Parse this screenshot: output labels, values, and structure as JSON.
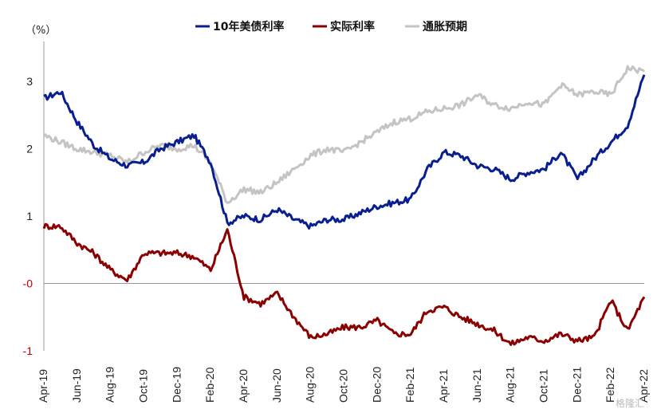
{
  "chart_data": {
    "type": "line",
    "unit_label": "（%）",
    "ylim": [
      -1,
      3.5
    ],
    "yticks": [
      3,
      2,
      1,
      0,
      -1
    ],
    "ytick_labels": [
      "3",
      "2",
      "1",
      "-0",
      "-1"
    ],
    "ytick_colors": [
      "#222222",
      "#222222",
      "#222222",
      "#c00000",
      "#c00000"
    ],
    "x_start": "2019-04",
    "x_end": "2022-04",
    "categories": [
      "Apr-19",
      "Jun-19",
      "Aug-19",
      "Oct-19",
      "Dec-19",
      "Feb-20",
      "Apr-20",
      "Jun-20",
      "Aug-20",
      "Oct-20",
      "Dec-20",
      "Feb-21",
      "Apr-21",
      "Jun-21",
      "Aug-21",
      "Oct-21",
      "Dec-21",
      "Feb-22",
      "Apr-22"
    ],
    "grid": false,
    "legend": "top-center",
    "series": [
      {
        "name": "10年美债利率",
        "color": "#0a1f8f",
        "x": [
          "2019-04",
          "2019-05",
          "2019-06",
          "2019-07",
          "2019-08",
          "2019-09",
          "2019-10",
          "2019-11",
          "2019-12",
          "2020-01",
          "2020-02",
          "2020-03",
          "2020-04",
          "2020-05",
          "2020-06",
          "2020-07",
          "2020-08",
          "2020-09",
          "2020-10",
          "2020-11",
          "2020-12",
          "2021-01",
          "2021-02",
          "2021-03",
          "2021-04",
          "2021-05",
          "2021-06",
          "2021-07",
          "2021-08",
          "2021-09",
          "2021-10",
          "2021-11",
          "2021-12",
          "2022-01",
          "2022-02",
          "2022-03",
          "2022-04"
        ],
        "values": [
          2.75,
          2.85,
          2.4,
          2.05,
          1.85,
          1.75,
          1.8,
          2.0,
          2.1,
          2.2,
          1.8,
          0.9,
          1.0,
          0.95,
          1.1,
          0.95,
          0.85,
          0.95,
          0.95,
          1.05,
          1.15,
          1.2,
          1.25,
          1.7,
          1.95,
          1.9,
          1.75,
          1.7,
          1.55,
          1.65,
          1.7,
          1.95,
          1.55,
          1.85,
          2.1,
          2.35,
          3.1
        ]
      },
      {
        "name": "实际利率",
        "color": "#8b0000",
        "x": [
          "2019-04",
          "2019-05",
          "2019-06",
          "2019-07",
          "2019-08",
          "2019-09",
          "2019-10",
          "2019-11",
          "2019-12",
          "2020-01",
          "2020-02",
          "2020-03",
          "2020-04",
          "2020-05",
          "2020-06",
          "2020-07",
          "2020-08",
          "2020-09",
          "2020-10",
          "2020-11",
          "2020-12",
          "2021-01",
          "2021-02",
          "2021-03",
          "2021-04",
          "2021-05",
          "2021-06",
          "2021-07",
          "2021-08",
          "2021-09",
          "2021-10",
          "2021-11",
          "2021-12",
          "2022-01",
          "2022-02",
          "2022-03",
          "2022-04"
        ],
        "values": [
          0.85,
          0.85,
          0.6,
          0.45,
          0.2,
          0.05,
          0.45,
          0.45,
          0.45,
          0.4,
          0.2,
          0.8,
          -0.2,
          -0.3,
          -0.15,
          -0.5,
          -0.8,
          -0.75,
          -0.65,
          -0.65,
          -0.55,
          -0.75,
          -0.75,
          -0.4,
          -0.35,
          -0.5,
          -0.6,
          -0.7,
          -0.9,
          -0.8,
          -0.85,
          -0.75,
          -0.85,
          -0.8,
          -0.25,
          -0.7,
          -0.2
        ]
      },
      {
        "name": "通胀预期",
        "color": "#c4c4c4",
        "x": [
          "2019-04",
          "2019-05",
          "2019-06",
          "2019-07",
          "2019-08",
          "2019-09",
          "2019-10",
          "2019-11",
          "2019-12",
          "2020-01",
          "2020-02",
          "2020-03",
          "2020-04",
          "2020-05",
          "2020-06",
          "2020-07",
          "2020-08",
          "2020-09",
          "2020-10",
          "2020-11",
          "2020-12",
          "2021-01",
          "2021-02",
          "2021-03",
          "2021-04",
          "2021-05",
          "2021-06",
          "2021-07",
          "2021-08",
          "2021-09",
          "2021-10",
          "2021-11",
          "2021-12",
          "2022-01",
          "2022-02",
          "2022-03",
          "2022-04"
        ],
        "values": [
          2.2,
          2.1,
          2.0,
          1.95,
          1.9,
          1.8,
          1.95,
          2.05,
          2.0,
          2.05,
          1.8,
          1.2,
          1.4,
          1.35,
          1.5,
          1.7,
          1.9,
          2.0,
          1.95,
          2.1,
          2.25,
          2.4,
          2.45,
          2.55,
          2.6,
          2.65,
          2.8,
          2.65,
          2.6,
          2.7,
          2.65,
          2.95,
          2.8,
          2.85,
          2.8,
          3.2,
          3.15
        ]
      }
    ]
  },
  "watermark": "格隆汇"
}
